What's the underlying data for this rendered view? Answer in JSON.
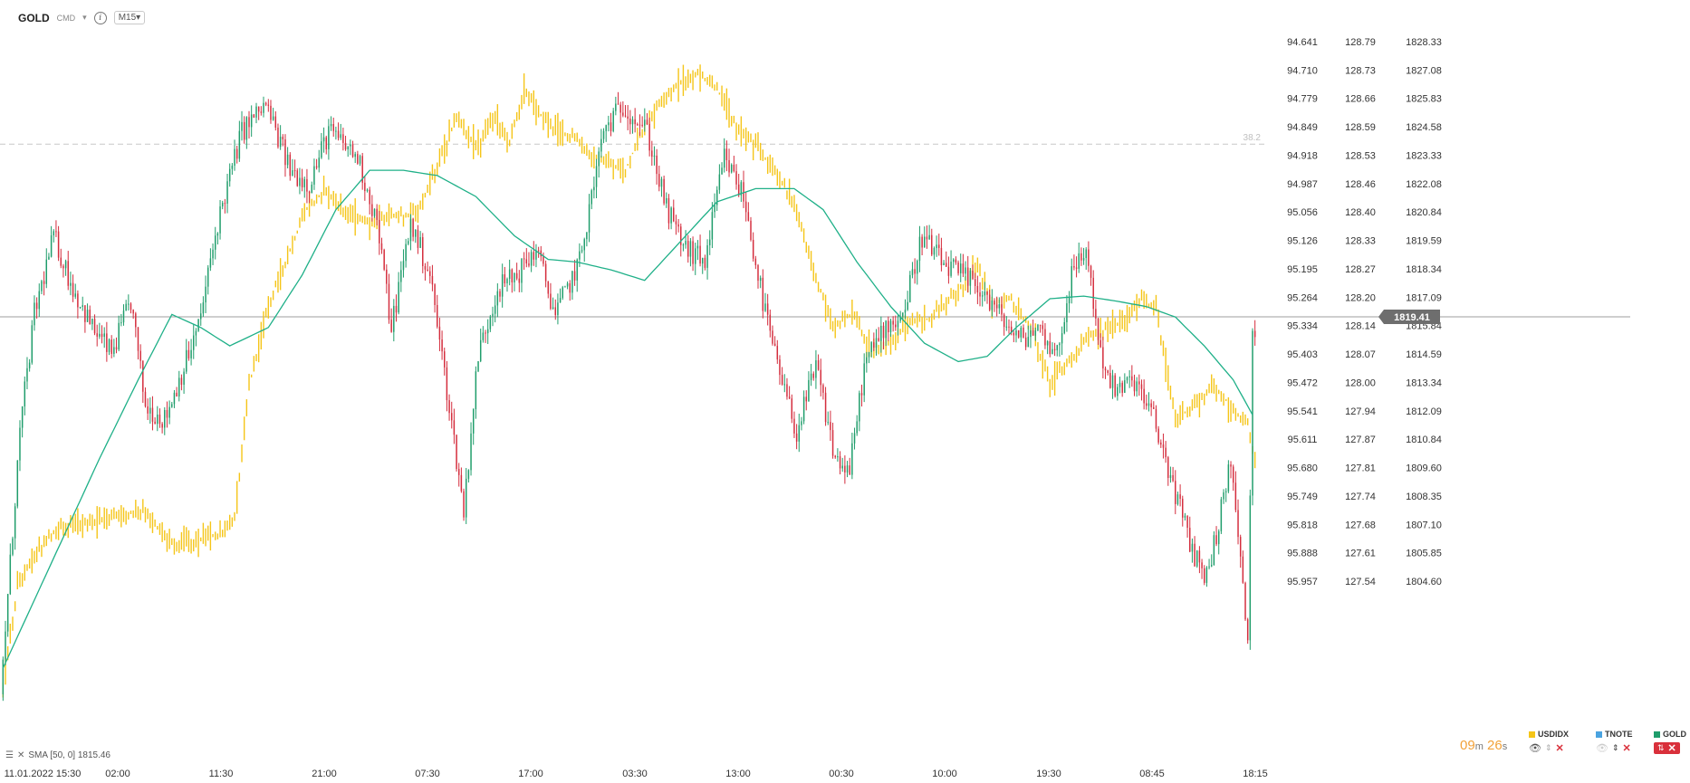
{
  "header": {
    "symbol": "GOLD",
    "market": "CMD",
    "caret": "▾",
    "info": "i",
    "timeframe": "M15",
    "timeframe_caret": "▾"
  },
  "chart_data": {
    "type": "candlestick",
    "secondary_lines": [
      {
        "name": "SMA [50, 0]",
        "color": "#1fb088"
      },
      {
        "name": "USDIDX",
        "color": "#f5c518"
      }
    ],
    "x_tick_labels": [
      "11.01.2022 15:30",
      "02:00",
      "11:30",
      "21:00",
      "07:30",
      "17:00",
      "03:30",
      "13:00",
      "00:30",
      "10:00",
      "19:30",
      "08:45",
      "18:15"
    ],
    "axes": [
      {
        "name": "USDIDX",
        "ticks": [
          "94.641",
          "94.710",
          "94.779",
          "94.849",
          "94.918",
          "94.987",
          "95.056",
          "95.126",
          "95.195",
          "95.264",
          "95.334",
          "95.403",
          "95.472",
          "95.541",
          "95.611",
          "95.680",
          "95.749",
          "95.818",
          "95.888",
          "95.957"
        ],
        "inverted": true
      },
      {
        "name": "TNOTE",
        "ticks": [
          "128.79",
          "128.73",
          "128.66",
          "128.59",
          "128.53",
          "128.46",
          "128.40",
          "128.33",
          "128.27",
          "128.20",
          "128.14",
          "128.07",
          "128.00",
          "127.94",
          "127.87",
          "127.81",
          "127.74",
          "127.68",
          "127.61",
          "127.54"
        ]
      },
      {
        "name": "GOLD",
        "ticks": [
          "1828.33",
          "1827.08",
          "1825.83",
          "1824.58",
          "1823.33",
          "1822.08",
          "1820.84",
          "1819.59",
          "1818.34",
          "1817.09",
          "1815.84",
          "1814.59",
          "1813.34",
          "1812.09",
          "1810.84",
          "1809.60",
          "1808.35",
          "1807.10",
          "1805.85",
          "1804.60"
        ]
      }
    ],
    "ylim_gold": [
      1804.0,
      1829.6
    ],
    "current_price": "1819.41",
    "fib_label": "38.2",
    "fib_level": 1826.0,
    "gold_keypoints": [
      {
        "t": 0,
        "v": 1805.0
      },
      {
        "t": 8,
        "v": 1815.0
      },
      {
        "t": 14,
        "v": 1819.5
      },
      {
        "t": 22,
        "v": 1822.5
      },
      {
        "t": 30,
        "v": 1820.5
      },
      {
        "t": 38,
        "v": 1819.0
      },
      {
        "t": 46,
        "v": 1818.0
      },
      {
        "t": 54,
        "v": 1820.0
      },
      {
        "t": 60,
        "v": 1816.0
      },
      {
        "t": 68,
        "v": 1815.5
      },
      {
        "t": 76,
        "v": 1817.5
      },
      {
        "t": 82,
        "v": 1819.0
      },
      {
        "t": 90,
        "v": 1823.0
      },
      {
        "t": 100,
        "v": 1826.5
      },
      {
        "t": 110,
        "v": 1827.5
      },
      {
        "t": 120,
        "v": 1825.0
      },
      {
        "t": 128,
        "v": 1824.5
      },
      {
        "t": 136,
        "v": 1826.5
      },
      {
        "t": 148,
        "v": 1825.5
      },
      {
        "t": 156,
        "v": 1823.0
      },
      {
        "t": 162,
        "v": 1819.0
      },
      {
        "t": 170,
        "v": 1823.0
      },
      {
        "t": 178,
        "v": 1821.0
      },
      {
        "t": 186,
        "v": 1816.0
      },
      {
        "t": 192,
        "v": 1812.0
      },
      {
        "t": 198,
        "v": 1818.0
      },
      {
        "t": 206,
        "v": 1820.5
      },
      {
        "t": 214,
        "v": 1821.0
      },
      {
        "t": 222,
        "v": 1822.0
      },
      {
        "t": 230,
        "v": 1819.5
      },
      {
        "t": 240,
        "v": 1821.5
      },
      {
        "t": 250,
        "v": 1826.5
      },
      {
        "t": 258,
        "v": 1827.5
      },
      {
        "t": 268,
        "v": 1826.5
      },
      {
        "t": 276,
        "v": 1823.5
      },
      {
        "t": 284,
        "v": 1822.0
      },
      {
        "t": 292,
        "v": 1821.5
      },
      {
        "t": 300,
        "v": 1825.5
      },
      {
        "t": 308,
        "v": 1824.0
      },
      {
        "t": 316,
        "v": 1820.0
      },
      {
        "t": 322,
        "v": 1817.5
      },
      {
        "t": 330,
        "v": 1815.0
      },
      {
        "t": 338,
        "v": 1817.5
      },
      {
        "t": 346,
        "v": 1814.0
      },
      {
        "t": 352,
        "v": 1813.5
      },
      {
        "t": 358,
        "v": 1817.5
      },
      {
        "t": 366,
        "v": 1819.0
      },
      {
        "t": 374,
        "v": 1819.5
      },
      {
        "t": 382,
        "v": 1822.5
      },
      {
        "t": 390,
        "v": 1821.5
      },
      {
        "t": 398,
        "v": 1821.0
      },
      {
        "t": 406,
        "v": 1820.5
      },
      {
        "t": 414,
        "v": 1819.5
      },
      {
        "t": 422,
        "v": 1818.5
      },
      {
        "t": 430,
        "v": 1819.0
      },
      {
        "t": 438,
        "v": 1818.0
      },
      {
        "t": 444,
        "v": 1821.0
      },
      {
        "t": 450,
        "v": 1822.0
      },
      {
        "t": 456,
        "v": 1818.0
      },
      {
        "t": 462,
        "v": 1816.5
      },
      {
        "t": 470,
        "v": 1817.0
      },
      {
        "t": 478,
        "v": 1815.5
      },
      {
        "t": 486,
        "v": 1813.0
      },
      {
        "t": 494,
        "v": 1810.5
      },
      {
        "t": 500,
        "v": 1809.5
      },
      {
        "t": 506,
        "v": 1812.0
      },
      {
        "t": 510,
        "v": 1814.0
      },
      {
        "t": 514,
        "v": 1810.0
      },
      {
        "t": 517,
        "v": 1807.0
      },
      {
        "t": 519,
        "v": 1818.5
      }
    ],
    "usdidx_keypoints": [
      {
        "t": 0,
        "v": 95.93
      },
      {
        "t": 6,
        "v": 95.72
      },
      {
        "t": 12,
        "v": 95.66
      },
      {
        "t": 22,
        "v": 95.6
      },
      {
        "t": 34,
        "v": 95.59
      },
      {
        "t": 46,
        "v": 95.57
      },
      {
        "t": 58,
        "v": 95.56
      },
      {
        "t": 70,
        "v": 95.63
      },
      {
        "t": 82,
        "v": 95.62
      },
      {
        "t": 90,
        "v": 95.61
      },
      {
        "t": 96,
        "v": 95.58
      },
      {
        "t": 102,
        "v": 95.3
      },
      {
        "t": 110,
        "v": 95.13
      },
      {
        "t": 118,
        "v": 95.03
      },
      {
        "t": 126,
        "v": 94.93
      },
      {
        "t": 134,
        "v": 94.89
      },
      {
        "t": 140,
        "v": 94.93
      },
      {
        "t": 150,
        "v": 94.96
      },
      {
        "t": 160,
        "v": 94.95
      },
      {
        "t": 172,
        "v": 94.94
      },
      {
        "t": 180,
        "v": 94.84
      },
      {
        "t": 188,
        "v": 94.74
      },
      {
        "t": 196,
        "v": 94.8
      },
      {
        "t": 204,
        "v": 94.74
      },
      {
        "t": 210,
        "v": 94.79
      },
      {
        "t": 216,
        "v": 94.68
      },
      {
        "t": 222,
        "v": 94.73
      },
      {
        "t": 228,
        "v": 94.76
      },
      {
        "t": 236,
        "v": 94.78
      },
      {
        "t": 244,
        "v": 94.82
      },
      {
        "t": 250,
        "v": 94.84
      },
      {
        "t": 258,
        "v": 94.85
      },
      {
        "t": 264,
        "v": 94.78
      },
      {
        "t": 272,
        "v": 94.71
      },
      {
        "t": 280,
        "v": 94.67
      },
      {
        "t": 288,
        "v": 94.65
      },
      {
        "t": 296,
        "v": 94.68
      },
      {
        "t": 304,
        "v": 94.76
      },
      {
        "t": 312,
        "v": 94.8
      },
      {
        "t": 320,
        "v": 94.85
      },
      {
        "t": 328,
        "v": 94.92
      },
      {
        "t": 336,
        "v": 95.06
      },
      {
        "t": 344,
        "v": 95.18
      },
      {
        "t": 352,
        "v": 95.15
      },
      {
        "t": 360,
        "v": 95.23
      },
      {
        "t": 368,
        "v": 95.21
      },
      {
        "t": 376,
        "v": 95.17
      },
      {
        "t": 384,
        "v": 95.16
      },
      {
        "t": 392,
        "v": 95.12
      },
      {
        "t": 398,
        "v": 95.09
      },
      {
        "t": 404,
        "v": 95.05
      },
      {
        "t": 410,
        "v": 95.13
      },
      {
        "t": 418,
        "v": 95.12
      },
      {
        "t": 426,
        "v": 95.18
      },
      {
        "t": 434,
        "v": 95.29
      },
      {
        "t": 442,
        "v": 95.25
      },
      {
        "t": 450,
        "v": 95.2
      },
      {
        "t": 458,
        "v": 95.18
      },
      {
        "t": 466,
        "v": 95.16
      },
      {
        "t": 472,
        "v": 95.12
      },
      {
        "t": 478,
        "v": 95.14
      },
      {
        "t": 486,
        "v": 95.37
      },
      {
        "t": 494,
        "v": 95.34
      },
      {
        "t": 502,
        "v": 95.3
      },
      {
        "t": 510,
        "v": 95.35
      },
      {
        "t": 516,
        "v": 95.38
      },
      {
        "t": 520,
        "v": 95.5
      }
    ],
    "sma_keypoints": [
      {
        "t": 0,
        "v": 1806.0
      },
      {
        "t": 20,
        "v": 1810.0
      },
      {
        "t": 40,
        "v": 1814.0
      },
      {
        "t": 56,
        "v": 1817.0
      },
      {
        "t": 70,
        "v": 1819.5
      },
      {
        "t": 82,
        "v": 1819.0
      },
      {
        "t": 94,
        "v": 1818.3
      },
      {
        "t": 110,
        "v": 1819.0
      },
      {
        "t": 124,
        "v": 1821.0
      },
      {
        "t": 138,
        "v": 1823.5
      },
      {
        "t": 152,
        "v": 1825.0
      },
      {
        "t": 166,
        "v": 1825.0
      },
      {
        "t": 180,
        "v": 1824.8
      },
      {
        "t": 196,
        "v": 1824.0
      },
      {
        "t": 212,
        "v": 1822.5
      },
      {
        "t": 226,
        "v": 1821.6
      },
      {
        "t": 238,
        "v": 1821.5
      },
      {
        "t": 252,
        "v": 1821.2
      },
      {
        "t": 266,
        "v": 1820.8
      },
      {
        "t": 280,
        "v": 1822.2
      },
      {
        "t": 296,
        "v": 1823.8
      },
      {
        "t": 312,
        "v": 1824.3
      },
      {
        "t": 328,
        "v": 1824.3
      },
      {
        "t": 340,
        "v": 1823.5
      },
      {
        "t": 354,
        "v": 1821.5
      },
      {
        "t": 368,
        "v": 1819.8
      },
      {
        "t": 382,
        "v": 1818.4
      },
      {
        "t": 396,
        "v": 1817.7
      },
      {
        "t": 408,
        "v": 1817.9
      },
      {
        "t": 420,
        "v": 1819.0
      },
      {
        "t": 434,
        "v": 1820.1
      },
      {
        "t": 448,
        "v": 1820.2
      },
      {
        "t": 462,
        "v": 1820.0
      },
      {
        "t": 474,
        "v": 1819.8
      },
      {
        "t": 486,
        "v": 1819.4
      },
      {
        "t": 498,
        "v": 1818.3
      },
      {
        "t": 510,
        "v": 1817.0
      },
      {
        "t": 519,
        "v": 1815.5
      }
    ],
    "grid": false,
    "legend_position": "bottom-right"
  },
  "sma_label": "SMA [50, 0] 1815.46",
  "timer": {
    "minutes": "09",
    "m": "m",
    "seconds": "26",
    "s": "s"
  },
  "legend": [
    {
      "name": "USDIDX",
      "color": "#f5c518"
    },
    {
      "name": "TNOTE",
      "color": "#4aa3e0"
    },
    {
      "name": "GOLD",
      "color": "#1f9d6b"
    }
  ],
  "colors": {
    "up": "#1f9d6b",
    "down": "#d42d3d",
    "usdidx": "#f5c518",
    "sma": "#1fb088",
    "price_line": "#9e9e9e",
    "fib": "#c8c8c8",
    "axis_text": "#333333"
  }
}
